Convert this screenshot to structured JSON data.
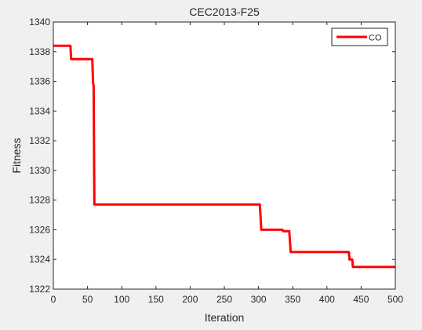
{
  "chart_data": {
    "type": "line",
    "title": "CEC2013-F25",
    "xlabel": "Iteration",
    "ylabel": "Fitness",
    "xlim": [
      0,
      500
    ],
    "ylim": [
      1322,
      1340
    ],
    "xticks": [
      0,
      50,
      100,
      150,
      200,
      250,
      300,
      350,
      400,
      450,
      500
    ],
    "yticks": [
      1322,
      1324,
      1326,
      1328,
      1330,
      1332,
      1334,
      1336,
      1338,
      1340
    ],
    "grid": false,
    "legend_position": "top-right",
    "series": [
      {
        "name": "CO",
        "color": "#ff0000",
        "points": [
          [
            0,
            1338.4
          ],
          [
            25,
            1338.4
          ],
          [
            26,
            1337.5
          ],
          [
            57,
            1337.5
          ],
          [
            58,
            1335.9
          ],
          [
            59,
            1335.7
          ],
          [
            60,
            1327.7
          ],
          [
            302,
            1327.7
          ],
          [
            304,
            1326.0
          ],
          [
            335,
            1326.0
          ],
          [
            336,
            1325.9
          ],
          [
            345,
            1325.9
          ],
          [
            347,
            1324.5
          ],
          [
            432,
            1324.5
          ],
          [
            433,
            1324.0
          ],
          [
            437,
            1324.0
          ],
          [
            438,
            1323.5
          ],
          [
            460,
            1323.5
          ],
          [
            462,
            1323.5
          ],
          [
            500,
            1323.5
          ]
        ]
      }
    ]
  }
}
